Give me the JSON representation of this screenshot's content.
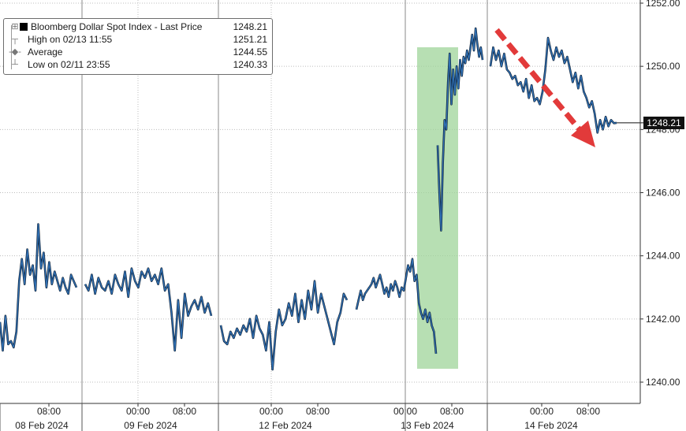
{
  "legend": {
    "title": "Bloomberg Dollar Spot Index - Last Price",
    "title_value": "1248.21",
    "rows": [
      {
        "icon": "high-marker-icon",
        "label": "High on 02/13 11:55",
        "value": "1251.21"
      },
      {
        "icon": "average-marker-icon",
        "label": "Average",
        "value": "1244.55"
      },
      {
        "icon": "low-marker-icon",
        "label": "Low on 02/11 23:55",
        "value": "1240.33"
      }
    ]
  },
  "last_price_tag": "1248.21",
  "chart_data": {
    "type": "line",
    "title": "",
    "xlabel": "",
    "ylabel": "",
    "ylim": [
      1239.4,
      1252.1
    ],
    "y_ticks": [
      "1240.00",
      "1242.00",
      "1244.00",
      "1246.00",
      "1248.00",
      "1250.00",
      "1252.00"
    ],
    "x_time_ticks": [
      "08:00",
      "00:00",
      "08:00",
      "00:00",
      "08:00",
      "00:00",
      "08:00",
      "00:00",
      "08:00"
    ],
    "x_date_labels": [
      "08 Feb 2024",
      "09 Feb 2024",
      "12 Feb 2024",
      "13 Feb 2024",
      "14 Feb 2024"
    ],
    "grid": true,
    "series": [
      {
        "name": "Bloomberg Dollar Spot Index",
        "color": "#2f6fb3",
        "segments": [
          [
            [
              1241.9,
              1241.0,
              1242.1,
              1241.2,
              1241.3,
              1241.1,
              1241.6,
              1243.2,
              1243.9,
              1243.1,
              1244.2,
              1243.4,
              1243.7,
              1242.9,
              1245.0,
              1243.6,
              1244.1,
              1243.0,
              1243.8,
              1243.1,
              1243.5,
              1243.2,
              1242.9,
              1243.3,
              1243.0,
              1242.8,
              1243.4,
              1243.2,
              1243.0
            ]
          ],
          [
            [
              1243.1,
              1242.9,
              1243.4,
              1242.8,
              1243.3,
              1243.0,
              1242.9,
              1243.2,
              1242.8,
              1243.4,
              1243.1,
              1242.9,
              1243.5,
              1242.7,
              1243.6,
              1243.2,
              1243.0,
              1243.5,
              1243.3,
              1243.6,
              1243.2,
              1243.4,
              1243.1,
              1243.6,
              1242.9,
              1243.1,
              1242.2,
              1241.0,
              1242.6,
              1241.4,
              1242.8,
              1242.1,
              1242.4,
              1242.6,
              1242.3,
              1242.7,
              1242.2,
              1242.5,
              1242.1
            ]
          ],
          [
            [
              1241.8,
              1241.3,
              1241.2,
              1241.6,
              1241.4,
              1241.7,
              1241.5,
              1241.8,
              1241.6,
              1242.0,
              1241.4,
              1242.1,
              1241.7,
              1241.5,
              1241.0,
              1241.9,
              1240.4,
              1241.6,
              1242.3,
              1241.8,
              1242.0,
              1242.5,
              1242.1,
              1242.8,
              1241.9,
              1242.6,
              1242.0,
              1242.9,
              1242.3,
              1243.2,
              1242.2,
              1242.8,
              1242.4,
              1242.0,
              1241.6,
              1241.2,
              1241.9,
              1242.2,
              1242.8,
              1242.6
            ]
          ],
          [
            [
              1242.3,
              1242.6,
              1242.9,
              1242.6,
              1242.8,
              1242.9,
              1243.0,
              1243.1,
              1243.3,
              1243.0,
              1243.2,
              1243.4,
              1243.1,
              1242.8,
              1243.0,
              1242.7,
              1243.1,
              1242.9,
              1243.2,
              1243.0,
              1242.7,
              1243.0,
              1242.9,
              1243.3,
              1243.7,
              1243.5,
              1243.9,
              1243.2,
              1243.4,
              1242.5,
              1242.2,
              1242.0,
              1242.3,
              1241.9,
              1242.2,
              1241.8,
              1241.6,
              1240.9
            ]
          ],
          [
            [
              1247.5,
              1246.0,
              1244.8,
              1246.9,
              1248.3,
              1248.0,
              1249.5,
              1250.4,
              1248.8,
              1249.9,
              1249.1,
              1250.0,
              1249.3,
              1250.2,
              1249.7,
              1250.3,
              1250.1,
              1250.5,
              1250.2,
              1250.6,
              1251.0,
              1250.5,
              1251.2,
              1250.7,
              1250.3,
              1250.6,
              1250.2
            ]
          ],
          [
            [
              1250.0,
              1250.6,
              1250.2,
              1250.5,
              1250.0,
              1250.4,
              1249.9,
              1249.8,
              1249.6,
              1249.7,
              1249.4,
              1249.5,
              1249.2,
              1249.6,
              1249.0,
              1249.4,
              1248.9,
              1249.0,
              1248.8,
              1249.2,
              1249.9,
              1250.9,
              1250.5,
              1250.2,
              1250.6,
              1250.3,
              1250.5,
              1250.1,
              1250.3,
              1249.9,
              1249.5,
              1249.8,
              1249.3,
              1249.7,
              1249.2,
              1249.0,
              1248.7,
              1248.9,
              1248.5,
              1247.9,
              1248.3,
              1248.0,
              1248.4,
              1248.1,
              1248.3,
              1248.2,
              1248.21
            ]
          ]
        ]
      }
    ],
    "annotations": [
      {
        "type": "highlight-band",
        "color": "#9fd49a"
      },
      {
        "type": "down-trend-arrow",
        "color": "#e23a3a"
      }
    ]
  }
}
